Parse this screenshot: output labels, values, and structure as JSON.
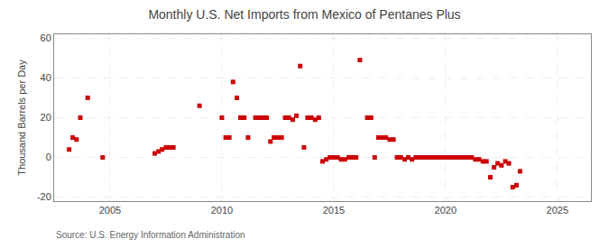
{
  "chart_data": {
    "type": "scatter",
    "title": "Monthly U.S. Net Imports from Mexico of Pentanes Plus",
    "ylabel": "Thousand Barrels per Day",
    "annotations": [
      "Source: U.S. Energy Information Administration"
    ],
    "x": [
      2003.17,
      2003.33,
      2003.5,
      2003.67,
      2004.0,
      2004.67,
      2007.0,
      2007.17,
      2007.33,
      2007.5,
      2007.67,
      2007.83,
      2009.0,
      2010.0,
      2010.17,
      2010.33,
      2010.5,
      2010.67,
      2010.83,
      2011.0,
      2011.17,
      2011.5,
      2011.67,
      2011.83,
      2012.0,
      2012.17,
      2012.33,
      2012.5,
      2012.67,
      2012.83,
      2013.0,
      2013.17,
      2013.33,
      2013.5,
      2013.67,
      2013.83,
      2014.0,
      2014.17,
      2014.33,
      2014.5,
      2014.67,
      2014.83,
      2015.0,
      2015.17,
      2015.33,
      2015.5,
      2015.67,
      2015.83,
      2016.0,
      2016.17,
      2016.5,
      2016.67,
      2016.83,
      2017.0,
      2017.17,
      2017.33,
      2017.5,
      2017.67,
      2017.83,
      2018.0,
      2018.17,
      2018.33,
      2018.5,
      2018.67,
      2018.83,
      2019.0,
      2019.17,
      2019.33,
      2019.5,
      2019.67,
      2019.83,
      2020.0,
      2020.17,
      2020.33,
      2020.5,
      2020.67,
      2020.83,
      2021.0,
      2021.17,
      2021.33,
      2021.5,
      2021.67,
      2021.83,
      2022.0,
      2022.17,
      2022.33,
      2022.5,
      2022.67,
      2022.83,
      2023.0,
      2023.17,
      2023.33
    ],
    "values": [
      4,
      10,
      9,
      20,
      30,
      0,
      2,
      3,
      4,
      5,
      5,
      5,
      26,
      20,
      10,
      10,
      38,
      30,
      20,
      20,
      10,
      20,
      20,
      20,
      20,
      8,
      10,
      10,
      10,
      20,
      20,
      19,
      21,
      46,
      5,
      20,
      20,
      19,
      20,
      -2,
      -1,
      0,
      0,
      0,
      -1,
      -1,
      0,
      0,
      0,
      49,
      20,
      20,
      0,
      10,
      10,
      10,
      9,
      9,
      0,
      0,
      -1,
      0,
      -1,
      0,
      0,
      0,
      0,
      0,
      0,
      0,
      0,
      0,
      0,
      0,
      0,
      0,
      0,
      0,
      0,
      -1,
      -1,
      -2,
      -2,
      -10,
      -5,
      -3,
      -4,
      -2,
      -3,
      -15,
      -14,
      -7
    ],
    "color": "#cc0000",
    "marker": "square",
    "xlim": [
      2002.5,
      2026.5
    ],
    "xticks": [
      2005,
      2010,
      2015,
      2020,
      2025
    ],
    "ylim": [
      -22,
      62
    ],
    "yticks": [
      -20,
      0,
      20,
      40,
      60
    ],
    "grid": true
  }
}
